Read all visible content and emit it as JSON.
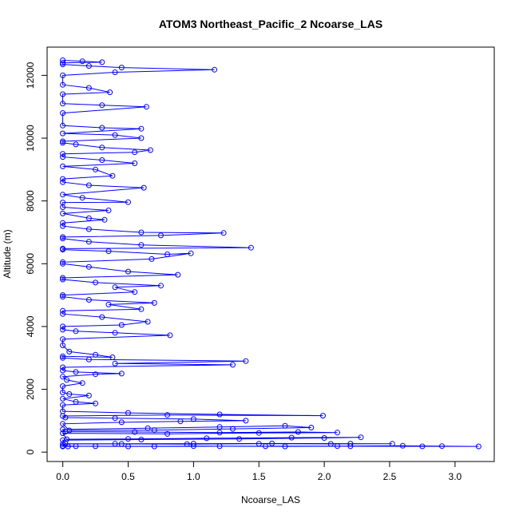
{
  "chart_data": {
    "type": "line",
    "title": "ATOM3 Northeast_Pacific_2 Ncoarse_LAS",
    "xlabel": "Ncoarse_LAS",
    "ylabel": "Altitude (m)",
    "xlim": [
      -0.12,
      3.3
    ],
    "ylim": [
      -300,
      12900
    ],
    "x_ticks": [
      0.0,
      0.5,
      1.0,
      1.5,
      2.0,
      2.5,
      3.0
    ],
    "x_tick_labels": [
      "0.0",
      "0.5",
      "1.0",
      "1.5",
      "2.0",
      "2.5",
      "3.0"
    ],
    "y_ticks": [
      0,
      2000,
      4000,
      6000,
      8000,
      10000,
      12000
    ],
    "y_tick_labels": [
      "0",
      "2000",
      "4000",
      "6000",
      "8000",
      "10000",
      "12000"
    ],
    "grid": false,
    "legend": "none",
    "series": [
      {
        "color": "#0000ff",
        "marker": "open-circle",
        "points": [
          [
            0.0,
            180
          ],
          [
            0.04,
            180
          ],
          [
            0.25,
            185
          ],
          [
            0.7,
            180
          ],
          [
            1.2,
            185
          ],
          [
            1.7,
            180
          ],
          [
            2.2,
            185
          ],
          [
            2.75,
            182
          ],
          [
            3.18,
            180
          ],
          [
            2.9,
            190
          ],
          [
            2.6,
            200
          ],
          [
            2.1,
            190
          ],
          [
            1.55,
            185
          ],
          [
            1.0,
            190
          ],
          [
            0.5,
            180
          ],
          [
            0.1,
            185
          ],
          [
            0.0,
            195
          ],
          [
            0.0,
            260
          ],
          [
            0.45,
            260
          ],
          [
            0.95,
            255
          ],
          [
            1.5,
            265
          ],
          [
            2.05,
            260
          ],
          [
            2.52,
            265
          ],
          [
            2.2,
            270
          ],
          [
            1.6,
            275
          ],
          [
            1.0,
            270
          ],
          [
            0.4,
            265
          ],
          [
            0.02,
            270
          ],
          [
            0.0,
            380
          ],
          [
            0.6,
            400
          ],
          [
            1.35,
            420
          ],
          [
            2.0,
            450
          ],
          [
            2.28,
            470
          ],
          [
            1.75,
            460
          ],
          [
            1.1,
            440
          ],
          [
            0.5,
            420
          ],
          [
            0.03,
            410
          ],
          [
            0.0,
            600
          ],
          [
            0.8,
            580
          ],
          [
            1.5,
            610
          ],
          [
            2.1,
            620
          ],
          [
            1.8,
            640
          ],
          [
            1.2,
            620
          ],
          [
            0.55,
            640
          ],
          [
            0.02,
            650
          ],
          [
            0.0,
            720
          ],
          [
            0.65,
            760
          ],
          [
            1.2,
            800
          ],
          [
            1.7,
            840
          ],
          [
            1.9,
            780
          ],
          [
            1.3,
            740
          ],
          [
            0.7,
            700
          ],
          [
            0.05,
            690
          ],
          [
            0.0,
            900
          ],
          [
            0.45,
            950
          ],
          [
            0.9,
            980
          ],
          [
            1.4,
            1000
          ],
          [
            1.0,
            1050
          ],
          [
            0.4,
            1080
          ],
          [
            0.02,
            1100
          ],
          [
            0.0,
            1150
          ],
          [
            0.8,
            1180
          ],
          [
            1.99,
            1160
          ],
          [
            1.2,
            1200
          ],
          [
            0.5,
            1250
          ],
          [
            0.0,
            1300
          ],
          [
            0.0,
            1500
          ],
          [
            0.25,
            1550
          ],
          [
            0.1,
            1600
          ],
          [
            0.0,
            1700
          ],
          [
            0.2,
            1800
          ],
          [
            0.05,
            1850
          ],
          [
            0.0,
            1900
          ],
          [
            0.0,
            2100
          ],
          [
            0.15,
            2200
          ],
          [
            0.03,
            2300
          ],
          [
            0.0,
            2400
          ],
          [
            0.25,
            2480
          ],
          [
            0.45,
            2500
          ],
          [
            0.1,
            2550
          ],
          [
            0.0,
            2600
          ],
          [
            0.0,
            2700
          ],
          [
            1.3,
            2780
          ],
          [
            0.4,
            2820
          ],
          [
            1.4,
            2900
          ],
          [
            0.2,
            2950
          ],
          [
            0.0,
            3000
          ],
          [
            0.0,
            3050
          ],
          [
            0.38,
            3020
          ],
          [
            0.25,
            3100
          ],
          [
            0.05,
            3200
          ],
          [
            0.0,
            3400
          ],
          [
            0.0,
            3600
          ],
          [
            0.82,
            3720
          ],
          [
            0.4,
            3800
          ],
          [
            0.1,
            3850
          ],
          [
            0.0,
            3900
          ],
          [
            0.0,
            4000
          ],
          [
            0.45,
            4050
          ],
          [
            0.65,
            4150
          ],
          [
            0.3,
            4300
          ],
          [
            0.0,
            4400
          ],
          [
            0.0,
            4500
          ],
          [
            0.6,
            4550
          ],
          [
            0.35,
            4700
          ],
          [
            0.7,
            4750
          ],
          [
            0.2,
            4850
          ],
          [
            0.0,
            4950
          ],
          [
            0.0,
            5000
          ],
          [
            0.55,
            5100
          ],
          [
            0.4,
            5250
          ],
          [
            0.75,
            5300
          ],
          [
            0.25,
            5400
          ],
          [
            0.0,
            5500
          ],
          [
            0.0,
            5550
          ],
          [
            0.88,
            5650
          ],
          [
            0.5,
            5750
          ],
          [
            0.2,
            5900
          ],
          [
            0.0,
            6000
          ],
          [
            0.0,
            6050
          ],
          [
            0.68,
            6150
          ],
          [
            0.98,
            6330
          ],
          [
            0.8,
            6300
          ],
          [
            0.35,
            6400
          ],
          [
            0.0,
            6450
          ],
          [
            0.0,
            6480
          ],
          [
            1.44,
            6510
          ],
          [
            0.6,
            6600
          ],
          [
            0.2,
            6700
          ],
          [
            0.0,
            6800
          ],
          [
            0.0,
            6850
          ],
          [
            0.75,
            6900
          ],
          [
            1.23,
            6980
          ],
          [
            0.6,
            7000
          ],
          [
            0.2,
            7100
          ],
          [
            0.0,
            7200
          ],
          [
            0.0,
            7300
          ],
          [
            0.32,
            7400
          ],
          [
            0.2,
            7450
          ],
          [
            0.0,
            7600
          ],
          [
            0.35,
            7700
          ],
          [
            0.0,
            7800
          ],
          [
            0.0,
            7950
          ],
          [
            0.5,
            7960
          ],
          [
            0.15,
            8100
          ],
          [
            0.0,
            8200
          ],
          [
            0.62,
            8420
          ],
          [
            0.2,
            8500
          ],
          [
            0.0,
            8600
          ],
          [
            0.0,
            8700
          ],
          [
            0.38,
            8800
          ],
          [
            0.25,
            9000
          ],
          [
            0.0,
            9100
          ],
          [
            0.55,
            9200
          ],
          [
            0.3,
            9300
          ],
          [
            0.0,
            9400
          ],
          [
            0.0,
            9500
          ],
          [
            0.55,
            9550
          ],
          [
            0.67,
            9620
          ],
          [
            0.3,
            9700
          ],
          [
            0.1,
            9800
          ],
          [
            0.0,
            9850
          ],
          [
            0.0,
            9900
          ],
          [
            0.6,
            10000
          ],
          [
            0.4,
            10100
          ],
          [
            0.0,
            10150
          ],
          [
            0.6,
            10300
          ],
          [
            0.3,
            10330
          ],
          [
            0.0,
            10400
          ],
          [
            0.0,
            10800
          ],
          [
            0.64,
            11000
          ],
          [
            0.3,
            11050
          ],
          [
            0.0,
            11100
          ],
          [
            0.0,
            11400
          ],
          [
            0.36,
            11460
          ],
          [
            0.2,
            11600
          ],
          [
            0.0,
            11700
          ],
          [
            0.0,
            12000
          ],
          [
            0.4,
            12100
          ],
          [
            1.16,
            12180
          ],
          [
            0.45,
            12250
          ],
          [
            0.2,
            12300
          ],
          [
            0.0,
            12350
          ],
          [
            0.0,
            12400
          ],
          [
            0.3,
            12420
          ],
          [
            0.15,
            12450
          ],
          [
            0.0,
            12480
          ]
        ]
      }
    ]
  }
}
